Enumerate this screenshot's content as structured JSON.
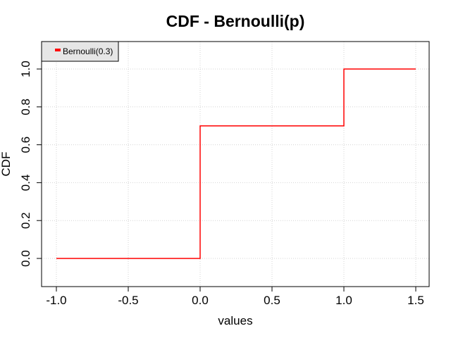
{
  "chart_data": {
    "type": "line",
    "title": "CDF - Bernoulli(p)",
    "xlabel": "values",
    "ylabel": "CDF",
    "xlim": [
      -1.0,
      1.5
    ],
    "ylim": [
      -0.15,
      1.15
    ],
    "x_ticks": [
      "-1.0",
      "-0.5",
      "0.0",
      "0.5",
      "1.0",
      "1.5"
    ],
    "x_tick_values": [
      -1.0,
      -0.5,
      0.0,
      0.5,
      1.0,
      1.5
    ],
    "y_ticks": [
      "0.0",
      "0.2",
      "0.4",
      "0.6",
      "0.8",
      "1.0"
    ],
    "y_tick_values": [
      0.0,
      0.2,
      0.4,
      0.6,
      0.8,
      1.0
    ],
    "grid": true,
    "legend_position": "top-left",
    "series": [
      {
        "name": "Bernoulli(0.3)",
        "color": "#ff0000",
        "step": true,
        "x": [
          -1.0,
          0.0,
          0.0,
          1.0,
          1.0,
          1.5
        ],
        "y": [
          0.0,
          0.0,
          0.7,
          0.7,
          1.0,
          1.0
        ]
      }
    ]
  }
}
